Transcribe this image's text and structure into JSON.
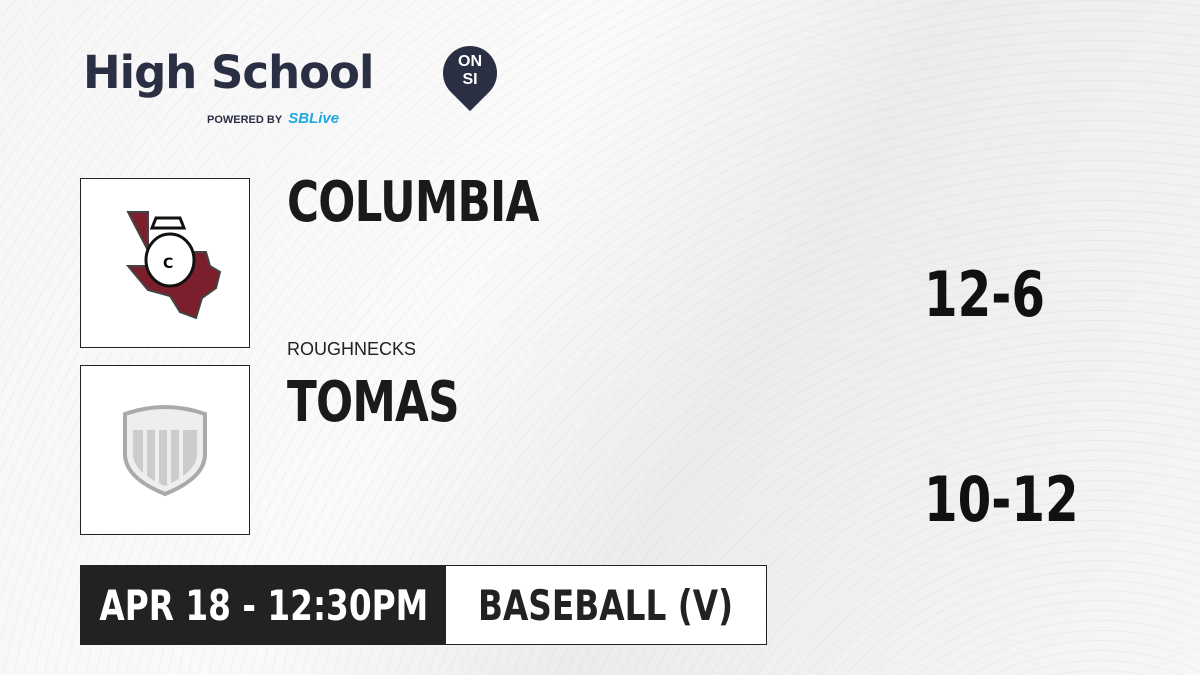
{
  "brand": {
    "title": "High School",
    "badge_top": "ON",
    "badge_bottom": "SI",
    "powered_by": "POWERED BY",
    "partner": "SBLive"
  },
  "teams": [
    {
      "name": "COLUMBIA",
      "mascot": "ROUGHNECKS",
      "record": "12-6",
      "logo": "columbia-roughnecks-logo",
      "color": "#7a1f2b"
    },
    {
      "name": "TOMAS",
      "mascot": "",
      "record": "10-12",
      "logo": "generic-shield-logo"
    }
  ],
  "game": {
    "datetime": "APR 18 - 12:30PM",
    "sport": "BASEBALL (V)"
  }
}
